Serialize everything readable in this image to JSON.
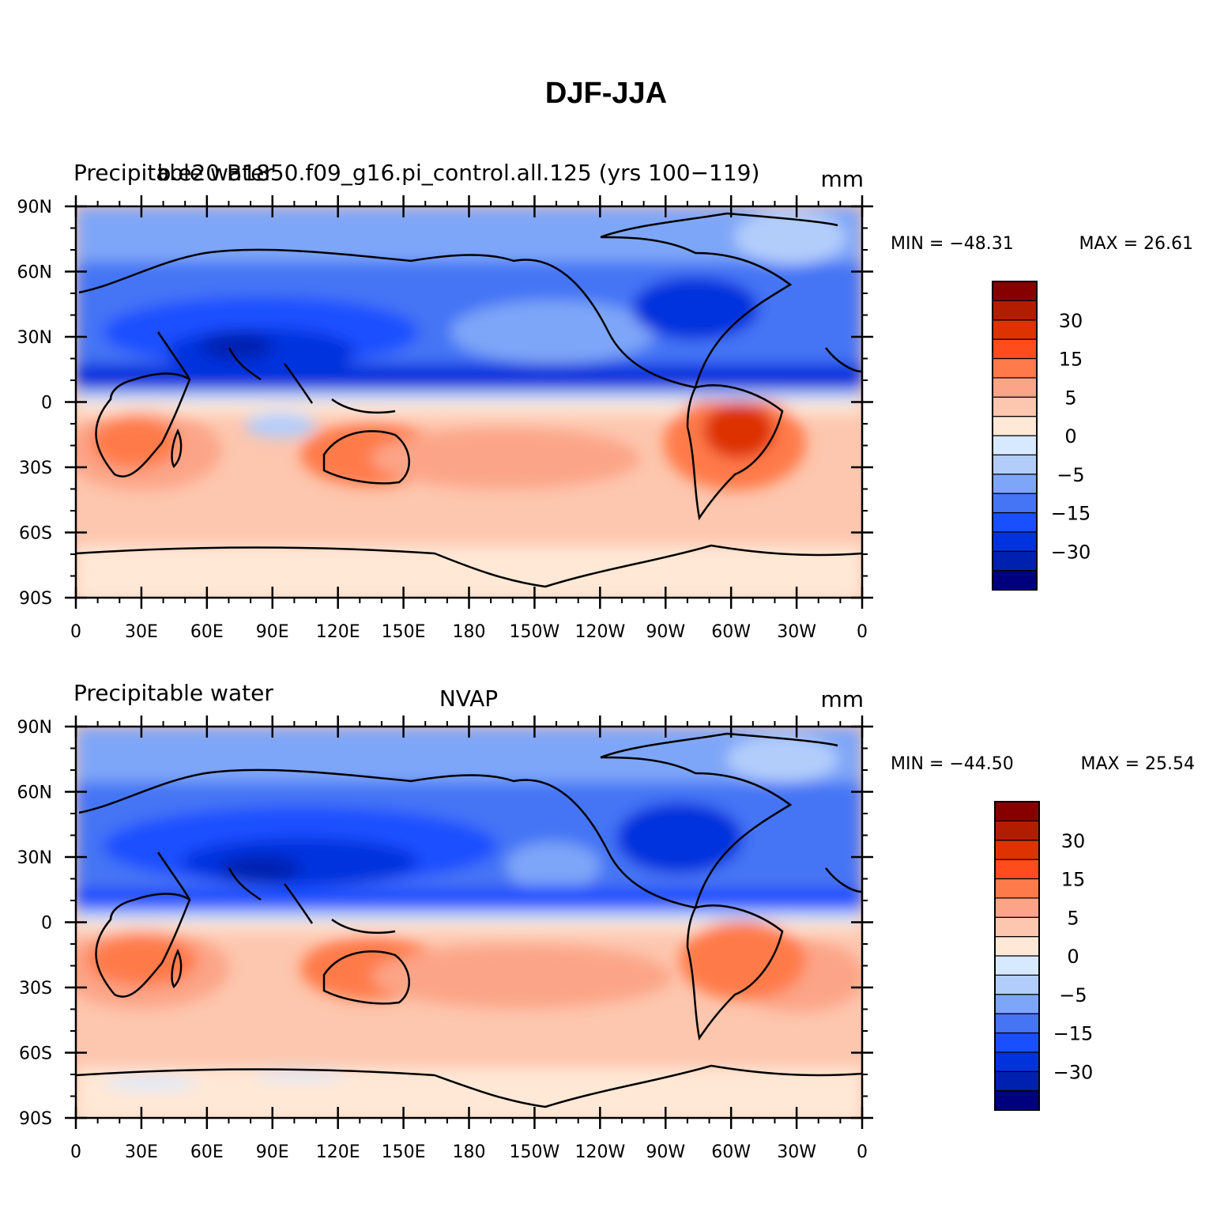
{
  "title": "DJF-JJA",
  "colors": {
    "levels": [
      "#00007f",
      "#0020b0",
      "#0033dd",
      "#1a4fff",
      "#4575f5",
      "#7ea6f8",
      "#b3cdfb",
      "#d7e9ff",
      "#ffe8d6",
      "#fdc6ae",
      "#fca487",
      "#ff7a4a",
      "#ff4c1c",
      "#dd3300",
      "#b21d00",
      "#870000"
    ],
    "coast": "#000000"
  },
  "colorbar": {
    "labels": [
      "30",
      "15",
      "5",
      "0",
      "−5",
      "−15",
      "−30"
    ]
  },
  "axes": {
    "lat_ticks": [
      "90N",
      "60N",
      "30N",
      "0",
      "30S",
      "60S",
      "90S"
    ],
    "lon_ticks": [
      "0",
      "30E",
      "60E",
      "90E",
      "120E",
      "150E",
      "180",
      "150W",
      "120W",
      "90W",
      "60W",
      "30W",
      "0"
    ]
  },
  "panels": [
    {
      "left_label": "Precipitable water",
      "center_label": "b.e20.B1850.f09_g16.pi_control.all.125 (yrs 100−119)",
      "right_label": "mm",
      "min_text": "MIN = −48.31",
      "max_text": "MAX =   26.61"
    },
    {
      "left_label": "Precipitable water",
      "center_label": "NVAP",
      "right_label": "mm",
      "min_text": "MIN = −44.50",
      "max_text": "MAX =   25.54"
    }
  ]
}
